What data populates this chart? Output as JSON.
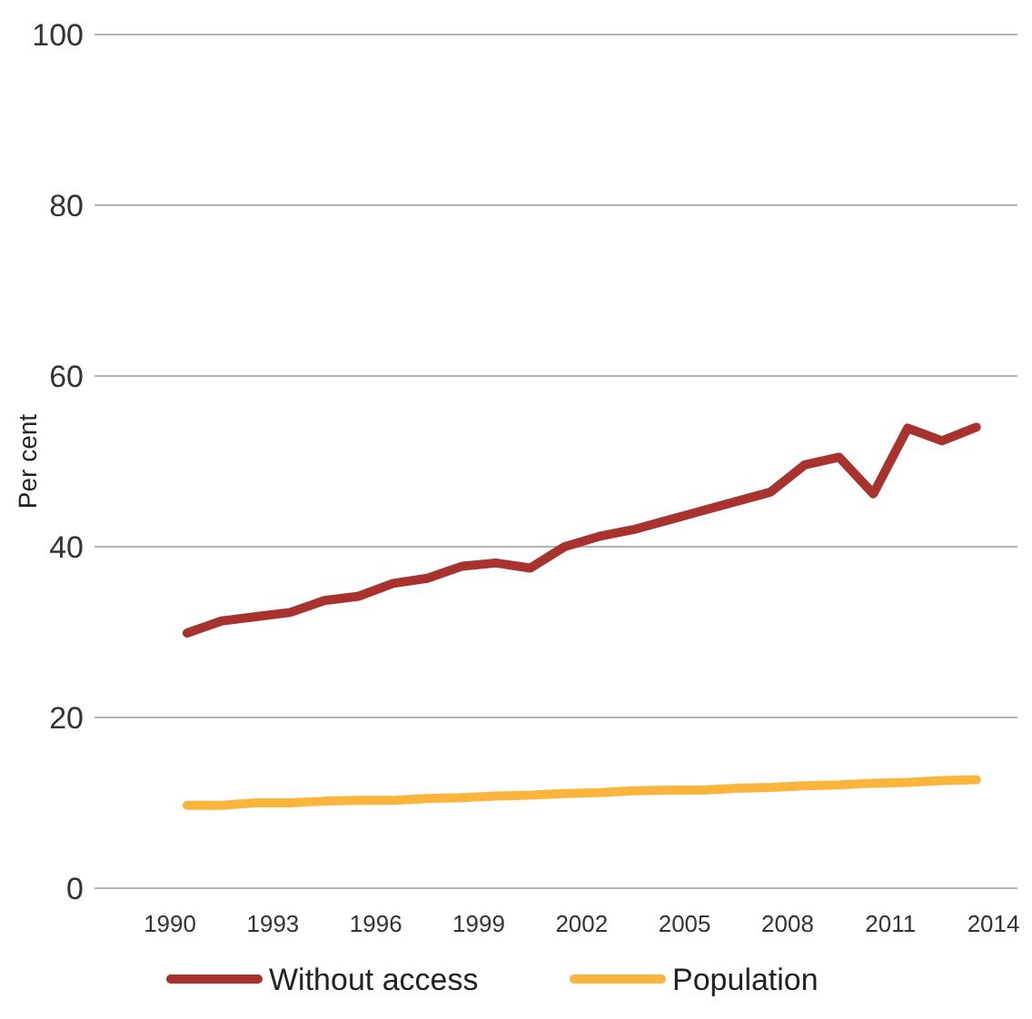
{
  "chart_data": {
    "type": "line",
    "ylabel": "Per cent",
    "x": [
      1990.5,
      1991.5,
      1992.5,
      1993.5,
      1994.5,
      1995.5,
      1996.5,
      1997.5,
      1998.5,
      1999.5,
      2000.5,
      2001.5,
      2002.5,
      2003.5,
      2004.5,
      2005.5,
      2006.5,
      2007.5,
      2008.5,
      2009.5,
      2010.5,
      2011.5,
      2012.5,
      2013.5
    ],
    "xlim": [
      1987.8,
      2014.7
    ],
    "xticks": [
      1990,
      1993,
      1996,
      1999,
      2002,
      2005,
      2008,
      2011,
      2014
    ],
    "ylim": [
      0,
      100
    ],
    "yticks": [
      0,
      20,
      40,
      60,
      80,
      100
    ],
    "grid": "y",
    "legend": "bottom",
    "line_style": "solid",
    "marker": "none",
    "series": [
      {
        "name": "Without access",
        "color": "#a8322d",
        "values": [
          29.9,
          31.3,
          31.8,
          32.3,
          33.7,
          34.2,
          35.7,
          36.3,
          37.7,
          38.1,
          37.5,
          40.0,
          41.2,
          42.0,
          43.1,
          44.2,
          45.3,
          46.4,
          49.6,
          50.5,
          46.2,
          53.9,
          52.4,
          54.0
        ]
      },
      {
        "name": "Population",
        "color": "#fbb53c",
        "values": [
          9.7,
          9.7,
          10.0,
          10.0,
          10.2,
          10.3,
          10.3,
          10.5,
          10.6,
          10.8,
          10.9,
          11.1,
          11.2,
          11.4,
          11.5,
          11.5,
          11.7,
          11.8,
          12.0,
          12.1,
          12.3,
          12.4,
          12.6,
          12.7
        ]
      }
    ]
  }
}
